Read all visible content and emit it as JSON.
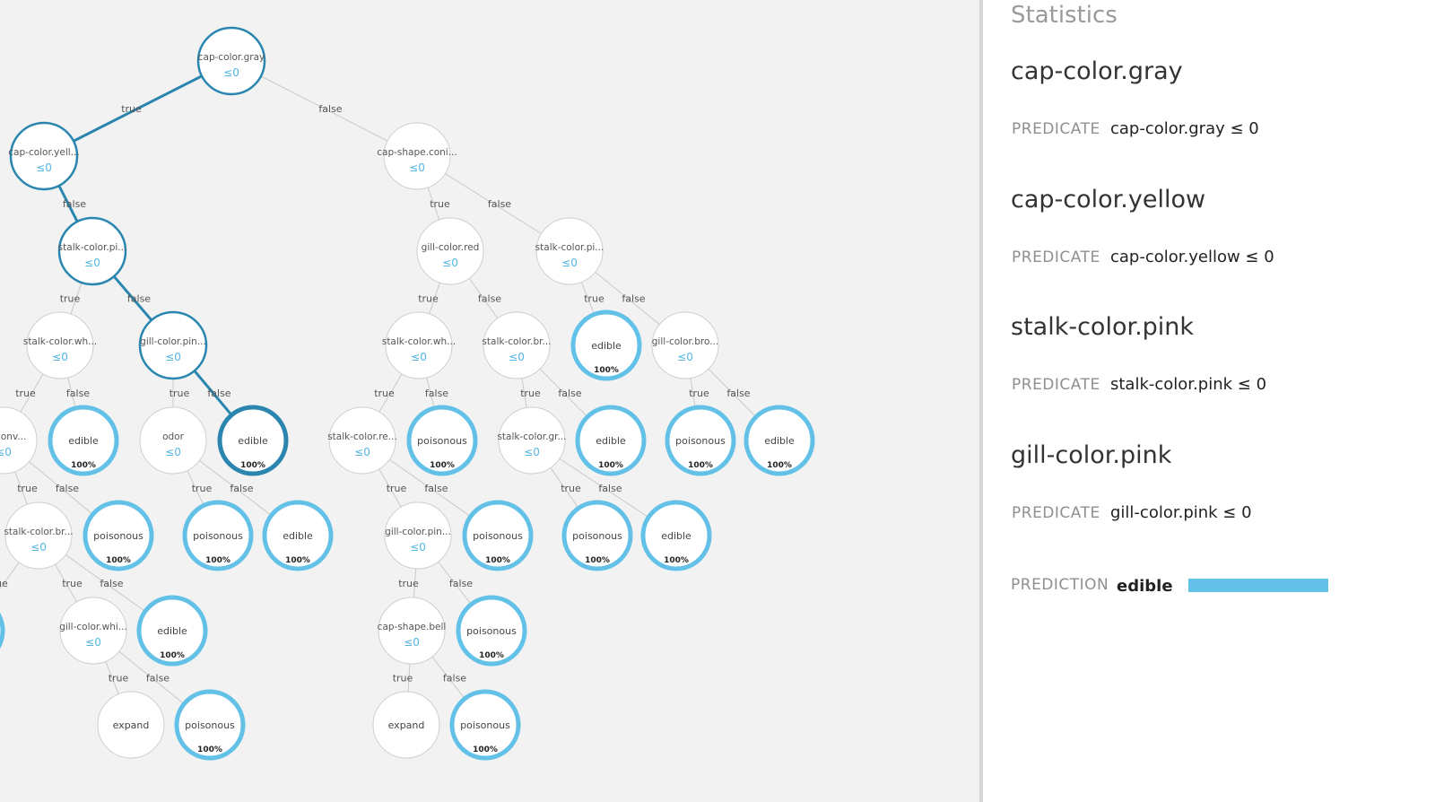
{
  "tree": {
    "nodes": [
      {
        "id": "n1",
        "type": "split",
        "label": "cap-color.gray",
        "value": "≤0",
        "onpath": true
      },
      {
        "id": "n2",
        "type": "split",
        "label": "cap-color.yell...",
        "value": "≤0",
        "onpath": true
      },
      {
        "id": "n3",
        "type": "split",
        "label": "cap-shape.coni...",
        "value": "≤0"
      },
      {
        "id": "n4",
        "type": "split",
        "label": "stalk-color.pi...",
        "value": "≤0",
        "onpath": true
      },
      {
        "id": "n5",
        "type": "split",
        "label": "gill-color.red",
        "value": "≤0"
      },
      {
        "id": "n6",
        "type": "split",
        "label": "stalk-color.pi...",
        "value": "≤0"
      },
      {
        "id": "n7",
        "type": "split",
        "label": "stalk-color.wh...",
        "value": "≤0"
      },
      {
        "id": "n8",
        "type": "split",
        "label": "gill-color.pin...",
        "value": "≤0",
        "onpath": true
      },
      {
        "id": "n9",
        "type": "split",
        "label": "stalk-color.wh...",
        "value": "≤0"
      },
      {
        "id": "n10",
        "type": "split",
        "label": "stalk-color.br...",
        "value": "≤0"
      },
      {
        "id": "n11",
        "type": "leaf",
        "label": "edible",
        "pct": "100%"
      },
      {
        "id": "n12",
        "type": "split",
        "label": "gill-color.bro...",
        "value": "≤0"
      },
      {
        "id": "n13",
        "type": "split",
        "label": "pe.conv...",
        "value": "≤0"
      },
      {
        "id": "n14",
        "type": "leaf",
        "label": "edible",
        "pct": "100%"
      },
      {
        "id": "n15",
        "type": "split",
        "label": "odor",
        "value": "≤0"
      },
      {
        "id": "n16",
        "type": "leaf",
        "label": "edible",
        "pct": "100%",
        "onpath": true
      },
      {
        "id": "n17",
        "type": "split",
        "label": "stalk-color.re...",
        "value": "≤0"
      },
      {
        "id": "n18",
        "type": "leaf",
        "label": "poisonous",
        "pct": "100%"
      },
      {
        "id": "n19",
        "type": "split",
        "label": "stalk-color.gr...",
        "value": "≤0"
      },
      {
        "id": "n20",
        "type": "leaf",
        "label": "edible",
        "pct": "100%"
      },
      {
        "id": "n21",
        "type": "leaf",
        "label": "poisonous",
        "pct": "100%"
      },
      {
        "id": "n22",
        "type": "leaf",
        "label": "edible",
        "pct": "100%"
      },
      {
        "id": "n23",
        "type": "split",
        "label": "stalk-color.br...",
        "value": "≤0"
      },
      {
        "id": "n24",
        "type": "leaf",
        "label": "poisonous",
        "pct": "100%"
      },
      {
        "id": "n25",
        "type": "leaf",
        "label": "poisonous",
        "pct": "100%"
      },
      {
        "id": "n26",
        "type": "leaf",
        "label": "edible",
        "pct": "100%"
      },
      {
        "id": "n27",
        "type": "split",
        "label": "gill-color.pin...",
        "value": "≤0"
      },
      {
        "id": "n28",
        "type": "leaf",
        "label": "poisonous",
        "pct": "100%"
      },
      {
        "id": "n29",
        "type": "leaf",
        "label": "poisonous",
        "pct": "100%"
      },
      {
        "id": "n30",
        "type": "leaf",
        "label": "edible",
        "pct": "100%"
      },
      {
        "id": "n31",
        "type": "leaf",
        "label": "",
        "pct": ""
      },
      {
        "id": "n32",
        "type": "split",
        "label": "gill-color.whi...",
        "value": "≤0"
      },
      {
        "id": "n33",
        "type": "leaf",
        "label": "edible",
        "pct": "100%"
      },
      {
        "id": "n34",
        "type": "split",
        "label": "cap-shape.bell",
        "value": "≤0"
      },
      {
        "id": "n35",
        "type": "leaf",
        "label": "poisonous",
        "pct": "100%"
      },
      {
        "id": "n36",
        "type": "expand",
        "label": "expand"
      },
      {
        "id": "n37",
        "type": "leaf",
        "label": "poisonous",
        "pct": "100%"
      },
      {
        "id": "n38",
        "type": "expand",
        "label": "expand"
      },
      {
        "id": "n39",
        "type": "leaf",
        "label": "poisonous",
        "pct": "100%"
      }
    ],
    "edges": [
      {
        "from": "n1",
        "to": "n2",
        "label": "true",
        "onpath": true
      },
      {
        "from": "n1",
        "to": "n3",
        "label": "false"
      },
      {
        "from": "n2",
        "to": "n4",
        "label": "false",
        "onpath": true
      },
      {
        "from": "n3",
        "to": "n5",
        "label": "true"
      },
      {
        "from": "n3",
        "to": "n6",
        "label": "false"
      },
      {
        "from": "n4",
        "to": "n7",
        "label": "true"
      },
      {
        "from": "n4",
        "to": "n8",
        "label": "false",
        "onpath": true
      },
      {
        "from": "n5",
        "to": "n9",
        "label": "true"
      },
      {
        "from": "n5",
        "to": "n10",
        "label": "false"
      },
      {
        "from": "n6",
        "to": "n11",
        "label": "true"
      },
      {
        "from": "n6",
        "to": "n12",
        "label": "false"
      },
      {
        "from": "n7",
        "to": "n13",
        "label": "true"
      },
      {
        "from": "n7",
        "to": "n14",
        "label": "false"
      },
      {
        "from": "n8",
        "to": "n15",
        "label": "true"
      },
      {
        "from": "n8",
        "to": "n16",
        "label": "false",
        "onpath": true
      },
      {
        "from": "n9",
        "to": "n17",
        "label": "true"
      },
      {
        "from": "n9",
        "to": "n18",
        "label": "false"
      },
      {
        "from": "n10",
        "to": "n19",
        "label": "true"
      },
      {
        "from": "n10",
        "to": "n20",
        "label": "false"
      },
      {
        "from": "n12",
        "to": "n21",
        "label": "true"
      },
      {
        "from": "n12",
        "to": "n22",
        "label": "false"
      },
      {
        "from": "n13",
        "to": "n23",
        "label": "true"
      },
      {
        "from": "n13",
        "to": "n24",
        "label": "false"
      },
      {
        "from": "n15",
        "to": "n25",
        "label": "true"
      },
      {
        "from": "n15",
        "to": "n26",
        "label": "false"
      },
      {
        "from": "n17",
        "to": "n27",
        "label": "true"
      },
      {
        "from": "n17",
        "to": "n28",
        "label": "false"
      },
      {
        "from": "n19",
        "to": "n29",
        "label": "true"
      },
      {
        "from": "n19",
        "to": "n30",
        "label": "false"
      },
      {
        "from": "n23",
        "to": "n31",
        "label": "true"
      },
      {
        "from": "n23",
        "to": "n32",
        "label": "true"
      },
      {
        "from": "n23",
        "to": "n33",
        "label": "false"
      },
      {
        "from": "n27",
        "to": "n34",
        "label": "true"
      },
      {
        "from": "n27",
        "to": "n35",
        "label": "false"
      },
      {
        "from": "n32",
        "to": "n36",
        "label": "true"
      },
      {
        "from": "n32",
        "to": "n37",
        "label": "false"
      },
      {
        "from": "n34",
        "to": "n38",
        "label": "true"
      },
      {
        "from": "n34",
        "to": "n39",
        "label": "false"
      }
    ]
  },
  "stats": {
    "title": "Statistics",
    "predicate_label": "PREDICATE",
    "path": [
      {
        "node": "cap-color.gray",
        "predicate": "cap-color.gray ≤ 0"
      },
      {
        "node": "cap-color.yellow",
        "predicate": "cap-color.yellow ≤ 0"
      },
      {
        "node": "stalk-color.pink",
        "predicate": "stalk-color.pink ≤ 0"
      },
      {
        "node": "gill-color.pink",
        "predicate": "gill-color.pink ≤ 0"
      }
    ],
    "prediction_label": "PREDICTION",
    "prediction_value": "edible",
    "prediction_confidence": 1.0
  },
  "colors": {
    "path_edge": "#2a86ae",
    "path_ring": "#2a86ae",
    "leaf_ring": "#63c1e8",
    "edge": "#c9c9c9",
    "node_fill": "#ffffff",
    "threshold_text": "#54b6e3"
  }
}
